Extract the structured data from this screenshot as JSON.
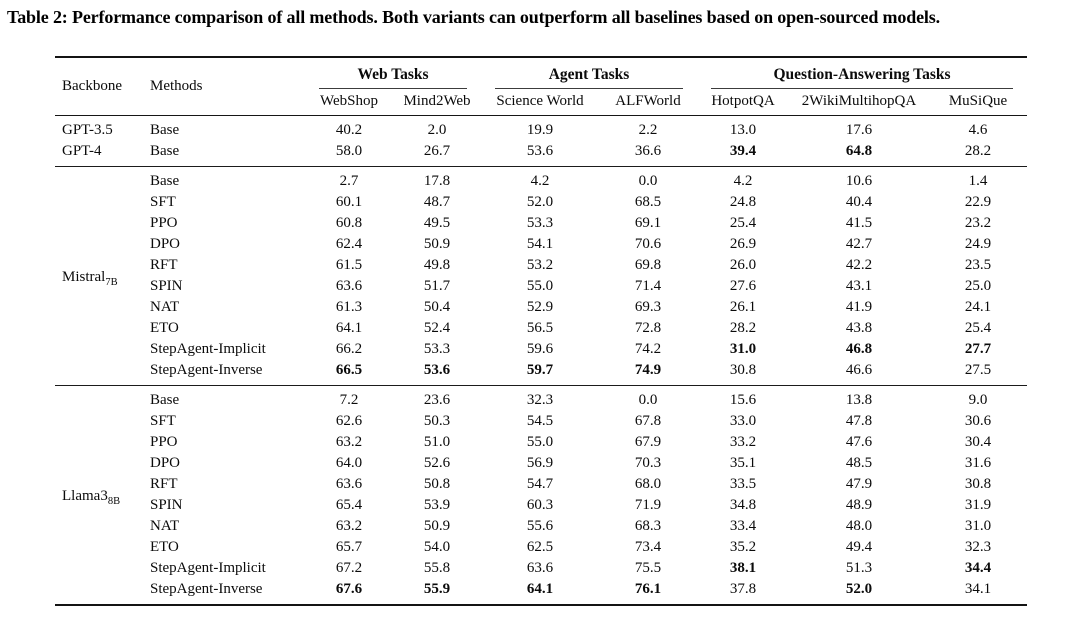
{
  "title": "Table 2: Performance comparison of all methods. Both variants can outperform all baselines based on open-sourced models.",
  "colors": {
    "background": "#ffffff",
    "text": "#0b0b0b",
    "rule": "#141414"
  },
  "table": {
    "col_headers": {
      "backbone": "Backbone",
      "methods": "Methods",
      "groups": [
        {
          "label": "Web Tasks",
          "cols": [
            "WebShop",
            "Mind2Web"
          ]
        },
        {
          "label": "Agent Tasks",
          "cols": [
            "Science World",
            "ALFWorld"
          ]
        },
        {
          "label": "Question-Answering Tasks",
          "cols": [
            "HotpotQA",
            "2WikiMultihopQA",
            "MuSiQue"
          ]
        }
      ]
    },
    "sections": [
      {
        "rows": [
          {
            "backbone": "GPT-3.5",
            "method": "Base",
            "values": [
              "40.2",
              "2.0",
              "19.9",
              "2.2",
              "13.0",
              "17.6",
              "4.6"
            ],
            "bold": []
          },
          {
            "backbone": "GPT-4",
            "method": "Base",
            "values": [
              "58.0",
              "26.7",
              "53.6",
              "36.6",
              "39.4",
              "64.8",
              "28.2"
            ],
            "bold": [
              4,
              5
            ]
          }
        ]
      },
      {
        "backbone": {
          "name": "Mistral",
          "sub": "7B"
        },
        "rows": [
          {
            "method": "Base",
            "values": [
              "2.7",
              "17.8",
              "4.2",
              "0.0",
              "4.2",
              "10.6",
              "1.4"
            ],
            "bold": []
          },
          {
            "method": "SFT",
            "values": [
              "60.1",
              "48.7",
              "52.0",
              "68.5",
              "24.8",
              "40.4",
              "22.9"
            ],
            "bold": []
          },
          {
            "method": "PPO",
            "values": [
              "60.8",
              "49.5",
              "53.3",
              "69.1",
              "25.4",
              "41.5",
              "23.2"
            ],
            "bold": []
          },
          {
            "method": "DPO",
            "values": [
              "62.4",
              "50.9",
              "54.1",
              "70.6",
              "26.9",
              "42.7",
              "24.9"
            ],
            "bold": []
          },
          {
            "method": "RFT",
            "values": [
              "61.5",
              "49.8",
              "53.2",
              "69.8",
              "26.0",
              "42.2",
              "23.5"
            ],
            "bold": []
          },
          {
            "method": "SPIN",
            "values": [
              "63.6",
              "51.7",
              "55.0",
              "71.4",
              "27.6",
              "43.1",
              "25.0"
            ],
            "bold": []
          },
          {
            "method": "NAT",
            "values": [
              "61.3",
              "50.4",
              "52.9",
              "69.3",
              "26.1",
              "41.9",
              "24.1"
            ],
            "bold": []
          },
          {
            "method": "ETO",
            "values": [
              "64.1",
              "52.4",
              "56.5",
              "72.8",
              "28.2",
              "43.8",
              "25.4"
            ],
            "bold": []
          },
          {
            "method": "StepAgent-Implicit",
            "values": [
              "66.2",
              "53.3",
              "59.6",
              "74.2",
              "31.0",
              "46.8",
              "27.7"
            ],
            "bold": [
              4,
              5,
              6
            ]
          },
          {
            "method": "StepAgent-Inverse",
            "values": [
              "66.5",
              "53.6",
              "59.7",
              "74.9",
              "30.8",
              "46.6",
              "27.5"
            ],
            "bold": [
              0,
              1,
              2,
              3
            ]
          }
        ]
      },
      {
        "backbone": {
          "name": "Llama3",
          "sub": "8B"
        },
        "rows": [
          {
            "method": "Base",
            "values": [
              "7.2",
              "23.6",
              "32.3",
              "0.0",
              "15.6",
              "13.8",
              "9.0"
            ],
            "bold": []
          },
          {
            "method": "SFT",
            "values": [
              "62.6",
              "50.3",
              "54.5",
              "67.8",
              "33.0",
              "47.8",
              "30.6"
            ],
            "bold": []
          },
          {
            "method": "PPO",
            "values": [
              "63.2",
              "51.0",
              "55.0",
              "67.9",
              "33.2",
              "47.6",
              "30.4"
            ],
            "bold": []
          },
          {
            "method": "DPO",
            "values": [
              "64.0",
              "52.6",
              "56.9",
              "70.3",
              "35.1",
              "48.5",
              "31.6"
            ],
            "bold": []
          },
          {
            "method": "RFT",
            "values": [
              "63.6",
              "50.8",
              "54.7",
              "68.0",
              "33.5",
              "47.9",
              "30.8"
            ],
            "bold": []
          },
          {
            "method": "SPIN",
            "values": [
              "65.4",
              "53.9",
              "60.3",
              "71.9",
              "34.8",
              "48.9",
              "31.9"
            ],
            "bold": []
          },
          {
            "method": "NAT",
            "values": [
              "63.2",
              "50.9",
              "55.6",
              "68.3",
              "33.4",
              "48.0",
              "31.0"
            ],
            "bold": []
          },
          {
            "method": "ETO",
            "values": [
              "65.7",
              "54.0",
              "62.5",
              "73.4",
              "35.2",
              "49.4",
              "32.3"
            ],
            "bold": []
          },
          {
            "method": "StepAgent-Implicit",
            "values": [
              "67.2",
              "55.8",
              "63.6",
              "75.5",
              "38.1",
              "51.3",
              "34.4"
            ],
            "bold": [
              4,
              6
            ]
          },
          {
            "method": "StepAgent-Inverse",
            "values": [
              "67.6",
              "55.9",
              "64.1",
              "76.1",
              "37.8",
              "52.0",
              "34.1"
            ],
            "bold": [
              0,
              1,
              2,
              3,
              5
            ]
          }
        ]
      }
    ]
  }
}
